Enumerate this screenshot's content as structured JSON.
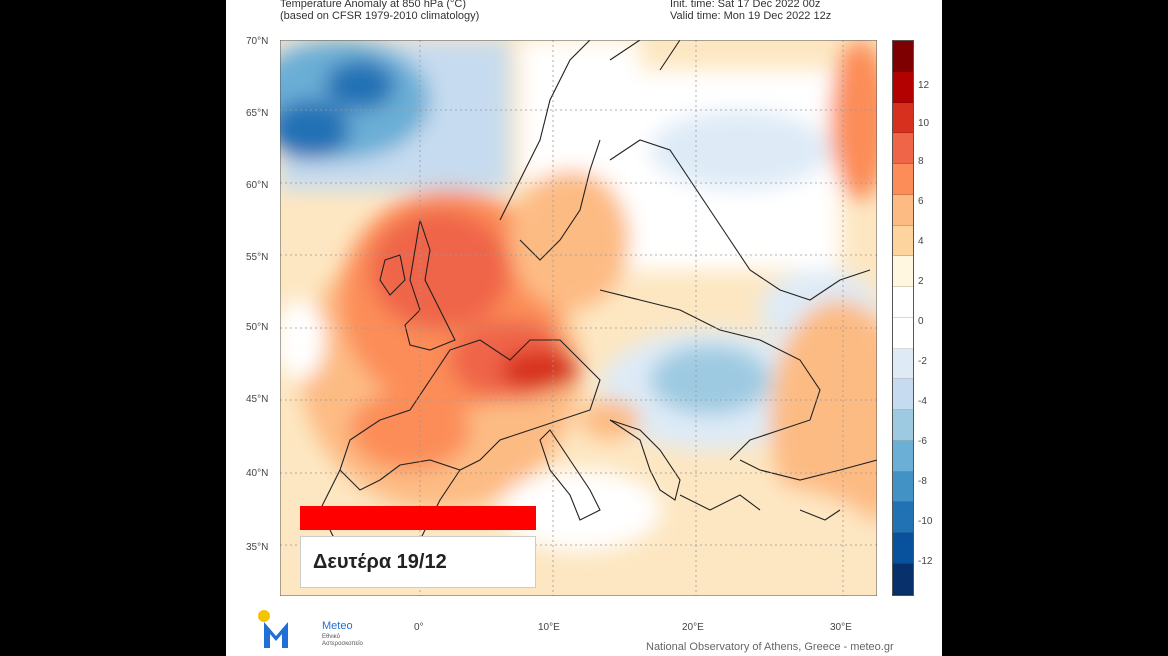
{
  "header": {
    "left_line1": "Temperature Anomaly at 850 hPa (°C)",
    "left_line2": "(based on CFSR 1979-2010 climatology)",
    "init_time": "Init. time: Sat 17 Dec 2022 00z",
    "valid_time": "Valid time: Mon 19 Dec 2022 12z"
  },
  "axes": {
    "lat_labels": [
      "70°N",
      "65°N",
      "60°N",
      "55°N",
      "50°N",
      "45°N",
      "40°N",
      "35°N"
    ],
    "lon_labels": [
      "0°",
      "10°E",
      "20°E",
      "30°E"
    ]
  },
  "colorbar": {
    "labels": [
      "12",
      "10",
      "8",
      "6",
      "4",
      "2",
      "0",
      "-2",
      "-4",
      "-6",
      "-8",
      "-10",
      "-12"
    ],
    "colors": [
      "#7f0000",
      "#b30000",
      "#d7301f",
      "#ef6548",
      "#fc8d59",
      "#fdbb84",
      "#fdd49e",
      "#fff7e0",
      "#ffffff",
      "#ffffff",
      "#deebf7",
      "#c6dbef",
      "#9ecae1",
      "#6baed6",
      "#4292c6",
      "#2171b5",
      "#08519c",
      "#08306b"
    ]
  },
  "overlay": {
    "date_label": "Δευτέρα 19/12",
    "accent_color": "#ff0000"
  },
  "logo": {
    "name": "Meteo",
    "tagline_1": "Εθνικό",
    "tagline_2": "Αστεροσκοπείο"
  },
  "credit": "National Observatory of Athens, Greece - meteo.gr"
}
